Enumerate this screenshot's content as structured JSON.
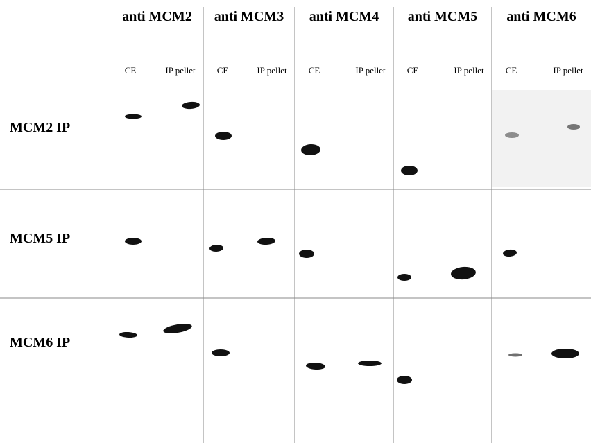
{
  "columns": [
    {
      "title": "anti MCM2",
      "lanes": [
        "CE",
        "IP pellet"
      ]
    },
    {
      "title": "anti MCM3",
      "lanes": [
        "CE",
        "IP pellet"
      ]
    },
    {
      "title": "anti MCM4",
      "lanes": [
        "CE",
        "IP pellet"
      ]
    },
    {
      "title": "anti MCM5",
      "lanes": [
        "CE",
        "IP pellet"
      ]
    },
    {
      "title": "anti MCM6",
      "lanes": [
        "CE",
        "IP pellet"
      ]
    }
  ],
  "rows": [
    {
      "label": "MCM2 IP"
    },
    {
      "label": "MCM5 IP"
    },
    {
      "label": "MCM6 IP"
    }
  ]
}
